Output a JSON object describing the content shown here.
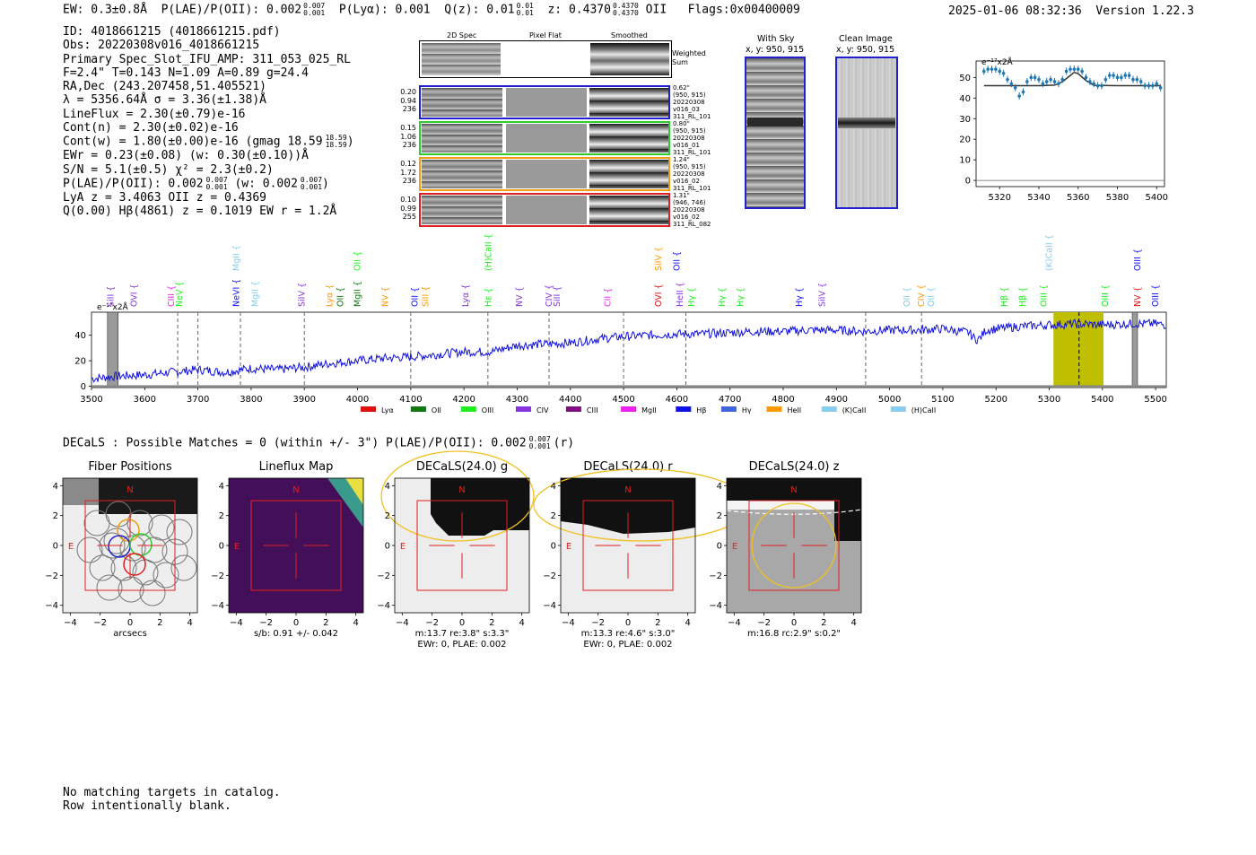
{
  "header": {
    "ew": "EW: 0.3±0.8Å",
    "plae": "P(LAE)/P(OII): 0.002",
    "plae_sup": "0.007",
    "plae_sub": "0.001",
    "plya": "P(Lyα): 0.001",
    "qz": "Q(z): 0.01",
    "qz_sup": "0.01",
    "qz_sub": "0.01",
    "z": "z: 0.4370",
    "z_sup": "0.4370",
    "z_sub": "0.4370",
    "line": "OII",
    "flags": "Flags:0x00400009",
    "datetime": "2025-01-06 08:32:36",
    "version": "Version 1.22.3"
  },
  "info": {
    "l1": "ID: 4018661215 (4018661215.pdf)",
    "l2": "Obs: 20220308v016_4018661215",
    "l3": "Primary Spec_Slot_IFU_AMP: 311_053_025_RL",
    "l4": "F=2.4\"  T=0.143  N=1.09  A=0.89  g=24.4",
    "l5": "RA,Dec (243.207458,51.405521)",
    "l6": "λ = 5356.64Å  σ = 3.36(±1.38)Å",
    "l7": "LineFlux = 2.30(±0.79)e-16",
    "l8": "Cont(n) = 2.30(±0.02)e-16",
    "l9": "Cont(w) = 1.80(±0.00)e-16 (gmag 18.59",
    "l9_sup": "18.59",
    "l9_sub": "18.59",
    "l9_end": ")",
    "l10": "EWr = 0.23(±0.08) (w: 0.30(±0.10))Å",
    "l11": "S/N = 5.1(±0.5)  χ² = 2.3(±0.2)",
    "l12": "P(LAE)/P(OII): 0.002",
    "l12_sup": "0.007",
    "l12_sub": "0.001",
    "l12_mid": "(w: 0.002",
    "l12_sup2": "0.007",
    "l12_sub2": "0.001",
    "l12_end": ")",
    "l13": "LyA z = 3.4063  OII z = 0.4369",
    "l14": "Q(0.00) Hβ(4861) z = 0.1019  EW r = 1.2Å"
  },
  "cutouts": {
    "col_2d": "2D Spec",
    "col_flat": "Pixel Flat",
    "col_smooth": "Smoothed",
    "weighted": "Weighted\nSum",
    "rows": [
      {
        "nums": "0.20\n0.94\n236",
        "meta": "0.62\"\n(950, 915)\n20220308\nv016_03\n311_RL_101",
        "color": "#1f1fd0"
      },
      {
        "nums": "0.15\n1.06\n236",
        "meta": "0.80\"\n(950, 915)\n20220308\nv016_01\n311_RL_101",
        "color": "#2ecc2e"
      },
      {
        "nums": "0.12\n1.72\n236",
        "meta": "1.24\"\n(950, 915)\n20220308\nv016_02\n311_RL_101",
        "color": "#f39c12"
      },
      {
        "nums": "0.10\n0.99\n255",
        "meta": "1.31\"\n(946, 746)\n20220308\nv016_02\n311_RL_082",
        "color": "#e02020"
      }
    ],
    "with_sky": "With Sky",
    "with_sky_xy": "x, y: 950, 915",
    "clean": "Clean Image",
    "clean_xy": "x, y: 950, 915"
  },
  "line_fit": {
    "unit": "e⁻¹⁷x2Å",
    "xticks": [
      "5320",
      "5340",
      "5360",
      "5380",
      "5400"
    ],
    "yticks": [
      "0",
      "10",
      "20",
      "30",
      "40",
      "50"
    ]
  },
  "spectrum": {
    "unit": "e⁻¹⁷x2Å",
    "xticks": [
      "3500",
      "3600",
      "3700",
      "3800",
      "3900",
      "4000",
      "4100",
      "4200",
      "4300",
      "4400",
      "4500",
      "4600",
      "4700",
      "4800",
      "4900",
      "5000",
      "5100",
      "5200",
      "5300",
      "5400",
      "5500"
    ],
    "yticks": [
      "0",
      "20",
      "40"
    ],
    "legend": [
      {
        "name": "Lyα",
        "color": "#e01010"
      },
      {
        "name": "OII",
        "color": "#117711"
      },
      {
        "name": "OIII",
        "color": "#22ee22"
      },
      {
        "name": "CIV",
        "color": "#8833dd"
      },
      {
        "name": "CIII",
        "color": "#801080"
      },
      {
        "name": "MgII",
        "color": "#ee22ee"
      },
      {
        "name": "Hβ",
        "color": "#1010ee"
      },
      {
        "name": "Hγ",
        "color": "#4466dd"
      },
      {
        "name": "HeII",
        "color": "#ff9900"
      },
      {
        "name": "(K)CaII",
        "color": "#88ccee"
      },
      {
        "name": "(H)CaII",
        "color": "#88ccee"
      }
    ],
    "line_labels": [
      {
        "t": "SiII",
        "w": 3536,
        "c": "#8833dd",
        "row": 1
      },
      {
        "t": "OVI",
        "w": 3580,
        "c": "#8833dd",
        "row": 1
      },
      {
        "t": "CIII",
        "w": 3650,
        "c": "#ee22ee",
        "row": 1
      },
      {
        "t": "NeV",
        "w": 3665,
        "c": "#22ee22",
        "row": 1
      },
      {
        "t": "MgII",
        "w": 3772,
        "c": "#88ccee",
        "row": 0
      },
      {
        "t": "NeVI",
        "w": 3772,
        "c": "#1010ee",
        "row": 1
      },
      {
        "t": "MgII",
        "w": 3808,
        "c": "#88ccee",
        "row": 1
      },
      {
        "t": "SiIV",
        "w": 3895,
        "c": "#8833dd",
        "row": 1
      },
      {
        "t": "Lyα",
        "w": 3948,
        "c": "#ff9900",
        "row": 1
      },
      {
        "t": "OII",
        "w": 3968,
        "c": "#117711",
        "row": 1
      },
      {
        "t": "OII",
        "w": 4000,
        "c": "#22ee22",
        "row": 0
      },
      {
        "t": "MgII",
        "w": 4000,
        "c": "#117711",
        "row": 1
      },
      {
        "t": "NV",
        "w": 4052,
        "c": "#ff9900",
        "row": 1
      },
      {
        "t": "OII",
        "w": 4108,
        "c": "#1010ee",
        "row": 1
      },
      {
        "t": "SiII",
        "w": 4128,
        "c": "#ff9900",
        "row": 1
      },
      {
        "t": "Lyα",
        "w": 4203,
        "c": "#8833dd",
        "row": 1
      },
      {
        "t": "(H)CaII",
        "w": 4246,
        "c": "#22ee22",
        "row": 0
      },
      {
        "t": "Hε",
        "w": 4246,
        "c": "#22ee22",
        "row": 1
      },
      {
        "t": "NV",
        "w": 4304,
        "c": "#8833dd",
        "row": 1
      },
      {
        "t": "CIV",
        "w": 4360,
        "c": "#8833dd",
        "row": 1
      },
      {
        "t": "SiII",
        "w": 4375,
        "c": "#8833dd",
        "row": 1
      },
      {
        "t": "CII",
        "w": 4470,
        "c": "#ee22ee",
        "row": 1
      },
      {
        "t": "SiIV",
        "w": 4566,
        "c": "#ff9900",
        "row": 0
      },
      {
        "t": "OII",
        "w": 4600,
        "c": "#1010ee",
        "row": 0
      },
      {
        "t": "OVI",
        "w": 4566,
        "c": "#e01010",
        "row": 1
      },
      {
        "t": "HeII",
        "w": 4606,
        "c": "#8833dd",
        "row": 1
      },
      {
        "t": "Hγ",
        "w": 4628,
        "c": "#22ee22",
        "row": 1
      },
      {
        "t": "Hγ",
        "w": 4685,
        "c": "#22ee22",
        "row": 1
      },
      {
        "t": "Hγ",
        "w": 4720,
        "c": "#22ee22",
        "row": 1
      },
      {
        "t": "Hγ",
        "w": 4830,
        "c": "#1010ee",
        "row": 1
      },
      {
        "t": "SiIV",
        "w": 4873,
        "c": "#8833dd",
        "row": 1
      },
      {
        "t": "(K)CaII",
        "w": 5300,
        "c": "#88ccee",
        "row": 0
      },
      {
        "t": "OII",
        "w": 5033,
        "c": "#88ccee",
        "row": 1
      },
      {
        "t": "CIV",
        "w": 5060,
        "c": "#ff9900",
        "row": 1
      },
      {
        "t": "OII",
        "w": 5078,
        "c": "#88ccee",
        "row": 1
      },
      {
        "t": "Hβ",
        "w": 5216,
        "c": "#22ee22",
        "row": 1
      },
      {
        "t": "Hβ",
        "w": 5250,
        "c": "#22ee22",
        "row": 1
      },
      {
        "t": "OIII",
        "w": 5290,
        "c": "#22ee22",
        "row": 1
      },
      {
        "t": "OIII",
        "w": 5405,
        "c": "#22ee22",
        "row": 1
      },
      {
        "t": "OIII",
        "w": 5466,
        "c": "#1010ee",
        "row": 0
      },
      {
        "t": "NV",
        "w": 5466,
        "c": "#e01010",
        "row": 1
      },
      {
        "t": "OIII",
        "w": 5500,
        "c": "#1010ee",
        "row": 1
      }
    ]
  },
  "decals": {
    "summary": "DECaLS : Possible Matches = 0 (within +/- 3\")  P(LAE)/P(OII): 0.002",
    "summary_sup": "0.007",
    "summary_sub": "0.001",
    "summary_end": "(r)",
    "panels": [
      {
        "title": "Fiber Positions",
        "cap1": "arcsecs",
        "cap2": ""
      },
      {
        "title": "Lineflux Map",
        "cap1": "s/b: 0.91 +/- 0.042",
        "cap2": ""
      },
      {
        "title": "DECaLS(24.0) g",
        "cap1": "m:13.7  re:3.8\"  s:3.3\"",
        "cap2": "EWr: 0, PLAE: 0.002"
      },
      {
        "title": "DECaLS(24.0) r",
        "cap1": "m:13.3  re:4.6\"  s:3.0\"",
        "cap2": "EWr: 0, PLAE: 0.002"
      },
      {
        "title": "DECaLS(24.0) z",
        "cap1": "m:16.8 rc:2.9\"  s:0.2\"",
        "cap2": ""
      }
    ],
    "ticks": [
      "−4",
      "−2",
      "0",
      "2",
      "4"
    ],
    "yticks": [
      "4",
      "2",
      "0",
      "−2",
      "−4"
    ],
    "north": "N",
    "east": "E"
  },
  "footer": {
    "line1": "No matching targets in catalog.",
    "line2": "Row intentionally blank."
  },
  "chart_data": [
    {
      "type": "line",
      "title": "",
      "xlabel": "",
      "ylabel": "e⁻¹⁷x2Å",
      "xlim": [
        5308,
        5404
      ],
      "ylim": [
        -3,
        58
      ],
      "series": [
        {
          "x": [
            5312,
            5314,
            5316,
            5318,
            5320,
            5322,
            5324,
            5326,
            5328,
            5330,
            5332,
            5334,
            5336,
            5338,
            5340,
            5342,
            5344,
            5346,
            5348,
            5350,
            5352,
            5354,
            5356,
            5358,
            5360,
            5362,
            5364,
            5366,
            5368,
            5370,
            5372,
            5374,
            5376,
            5378,
            5380,
            5382,
            5384,
            5386,
            5388,
            5390,
            5392,
            5394,
            5396,
            5398,
            5400,
            5402
          ],
          "y": [
            53,
            54,
            54,
            54,
            53,
            52,
            49,
            47,
            45,
            41,
            43,
            48,
            50,
            50,
            49,
            47,
            48,
            49,
            48,
            47,
            49,
            53,
            54,
            54,
            54,
            53,
            50,
            48,
            47,
            46,
            46,
            49,
            51,
            51,
            50,
            50,
            51,
            51,
            49,
            49,
            48,
            46,
            46,
            46,
            47,
            45
          ]
        },
        {
          "x": [
            5312,
            5340,
            5348,
            5352,
            5356,
            5358,
            5360,
            5364,
            5368,
            5380,
            5402
          ],
          "y": [
            46,
            46,
            46.3,
            48,
            51,
            52.5,
            51.8,
            48.5,
            46.2,
            46,
            46
          ]
        }
      ]
    },
    {
      "type": "line",
      "title": "",
      "xlabel": "",
      "ylabel": "e⁻¹⁷x2Å",
      "xlim": [
        3500,
        5520
      ],
      "ylim": [
        -1,
        58
      ],
      "x": [
        3500,
        3550,
        3600,
        3650,
        3700,
        3750,
        3800,
        3850,
        3900,
        3950,
        4000,
        4050,
        4100,
        4150,
        4200,
        4250,
        4300,
        4350,
        4400,
        4450,
        4500,
        4550,
        4600,
        4650,
        4700,
        4750,
        4800,
        4850,
        4900,
        4950,
        5000,
        5050,
        5100,
        5150,
        5200,
        5250,
        5300,
        5350,
        5400,
        5450,
        5500,
        5520
      ],
      "y": [
        6,
        8,
        9,
        11,
        13,
        11,
        14,
        13,
        15,
        18,
        20,
        22,
        23,
        25,
        27,
        27,
        32,
        33,
        34,
        37,
        39,
        40,
        41,
        41,
        42,
        43,
        43,
        44,
        44,
        43,
        44,
        44,
        45,
        42,
        45,
        47,
        48,
        49,
        48,
        49,
        49,
        48
      ],
      "shaded_regions": [
        [
          3530,
          3550
        ],
        [
          5308,
          5402
        ],
        [
          5456,
          5466
        ]
      ],
      "marked_lines": [
        3662,
        3700,
        3780,
        3900,
        4100,
        4245,
        4360,
        4500,
        4617,
        4955,
        5060,
        5356
      ]
    }
  ]
}
